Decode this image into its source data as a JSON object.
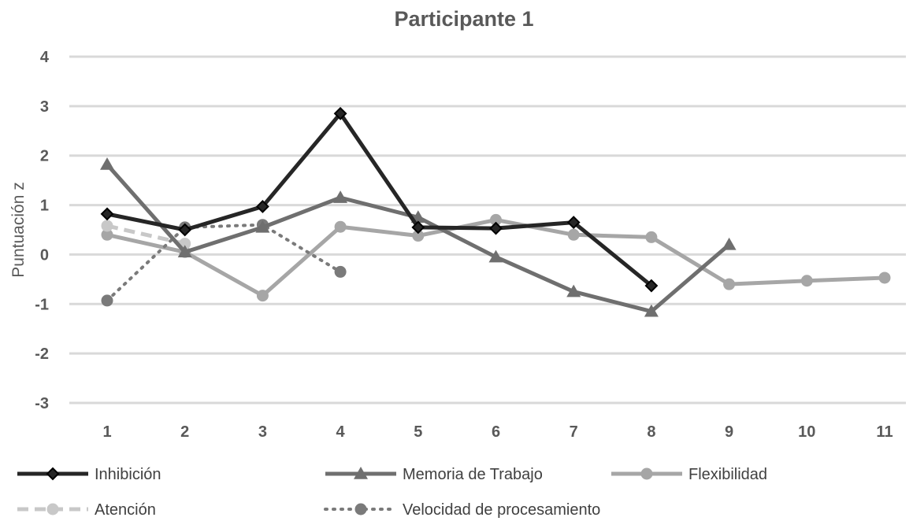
{
  "chart_data": {
    "type": "line",
    "title": "Participante 1",
    "xlabel": "",
    "ylabel": "Puntuación z",
    "categories": [
      "1",
      "2",
      "3",
      "4",
      "5",
      "6",
      "7",
      "8",
      "9",
      "10",
      "11"
    ],
    "yticks": [
      "4",
      "3",
      "2",
      "1",
      "0",
      "-1",
      "-2",
      "-3"
    ],
    "ylim": [
      -3,
      4
    ],
    "grid": true,
    "legend_position": "bottom",
    "series": [
      {
        "name": "Inhibición",
        "values": [
          0.82,
          0.5,
          0.97,
          2.85,
          0.55,
          0.53,
          0.65,
          -0.63,
          null,
          null,
          null
        ],
        "color": "#262626",
        "marker": "diamond",
        "dash": "solid",
        "width": 5
      },
      {
        "name": "Memoria de Trabajo",
        "values": [
          1.82,
          0.05,
          0.55,
          1.15,
          0.75,
          -0.05,
          -0.75,
          -1.15,
          0.2,
          null,
          null
        ],
        "color": "#6f6f6f",
        "marker": "triangle",
        "dash": "solid",
        "width": 5
      },
      {
        "name": "Flexibilidad",
        "values": [
          0.4,
          0.05,
          -0.83,
          0.56,
          0.38,
          0.7,
          0.4,
          0.35,
          -0.6,
          -0.53,
          -0.47
        ],
        "color": "#a6a6a6",
        "marker": "circle",
        "dash": "solid",
        "width": 5
      },
      {
        "name": "Atención",
        "values": [
          0.58,
          0.22,
          null,
          null,
          null,
          null,
          null,
          null,
          null,
          null,
          null
        ],
        "color": "#c8c8c8",
        "marker": "circle",
        "dash": "dash",
        "width": 5
      },
      {
        "name": "Velocidad de procesamiento",
        "values": [
          -0.93,
          0.55,
          0.6,
          -0.35,
          null,
          null,
          null,
          null,
          null,
          null,
          null
        ],
        "color": "#7a7a7a",
        "marker": "circle",
        "dash": "dot",
        "width": 4
      }
    ]
  }
}
